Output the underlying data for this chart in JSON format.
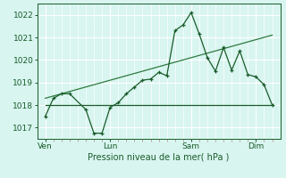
{
  "bg_color": "#c8eee8",
  "plot_bg_color": "#d8f5f0",
  "grid_color": "#ffffff",
  "minor_grid_color": "#e0e0e0",
  "line_color_dark": "#1a5c2a",
  "line_color_mid": "#2d7a40",
  "xlabel": "Pression niveau de la mer( hPa )",
  "yticks": [
    1017,
    1018,
    1019,
    1020,
    1021,
    1022
  ],
  "ylim": [
    1016.5,
    1022.5
  ],
  "xtick_labels": [
    "Ven",
    "Lun",
    "Sam",
    "Dim"
  ],
  "xtick_positions": [
    0,
    4,
    9,
    13
  ],
  "xlim": [
    -0.5,
    14.5
  ],
  "series1_x": [
    0,
    0.5,
    1.0,
    1.5,
    2.5,
    3.0,
    3.5,
    4.0,
    4.5,
    5.0,
    5.5,
    6.0,
    6.5,
    7.0,
    7.5,
    8.0,
    8.5,
    9.0,
    9.5,
    10.0,
    10.5,
    11.0,
    11.5,
    12.0,
    12.5,
    13.0,
    13.5,
    14.0
  ],
  "series1_y": [
    1017.5,
    1018.3,
    1018.5,
    1018.5,
    1017.8,
    1016.75,
    1016.75,
    1017.9,
    1018.1,
    1018.5,
    1018.8,
    1019.1,
    1019.15,
    1019.45,
    1019.3,
    1021.3,
    1021.55,
    1022.1,
    1021.15,
    1020.1,
    1019.5,
    1020.55,
    1019.55,
    1020.4,
    1019.35,
    1019.25,
    1018.9,
    1018.0
  ],
  "series2_x": [
    0,
    3.5,
    4.0,
    9.0,
    14.0
  ],
  "series2_y": [
    1018.0,
    1018.0,
    1018.0,
    1018.0,
    1018.0
  ],
  "series3_x": [
    0,
    14.0
  ],
  "series3_y": [
    1018.3,
    1021.1
  ],
  "major_vlines_x": [
    0,
    4,
    9,
    13
  ],
  "minor_vlines_x": [
    0.5,
    1.0,
    1.5,
    2.0,
    2.5,
    3.0,
    3.5,
    4.5,
    5.0,
    5.5,
    6.0,
    6.5,
    7.0,
    7.5,
    8.0,
    8.5,
    9.5,
    10.0,
    10.5,
    11.0,
    11.5,
    12.0,
    12.5,
    13.5,
    14.0
  ]
}
